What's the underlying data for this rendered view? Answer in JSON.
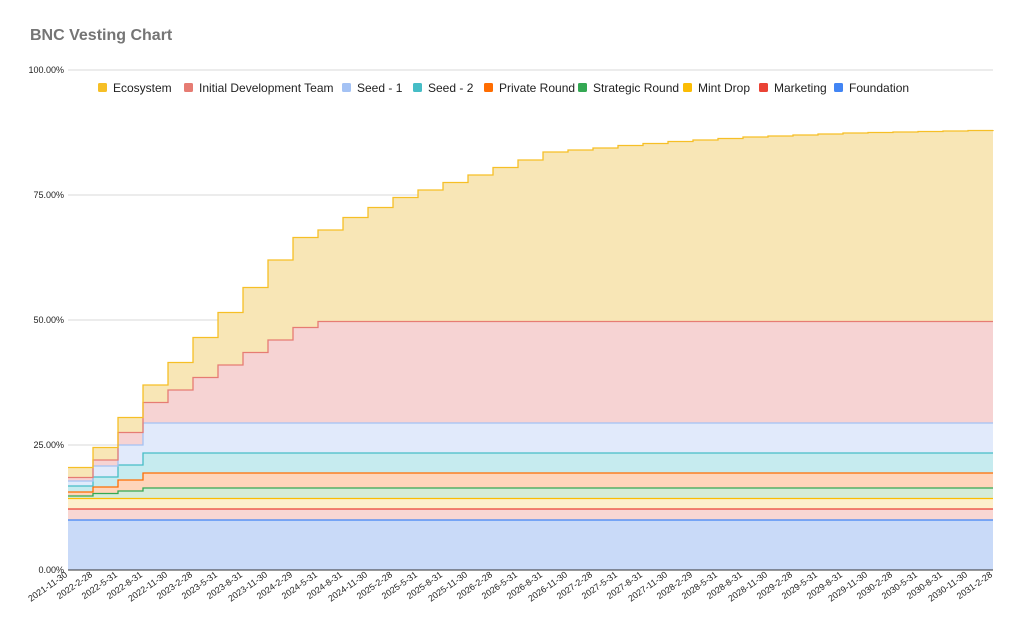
{
  "chart_data": {
    "type": "area",
    "stacked": true,
    "step": true,
    "title": "BNC Vesting Chart",
    "xlabel": "",
    "ylabel": "",
    "ylim": [
      0,
      100
    ],
    "y_ticks": [
      "0.00%",
      "25.00%",
      "50.00%",
      "75.00%",
      "100.00%"
    ],
    "grid": true,
    "legend_position": "top",
    "x_tick_labels": [
      "2021-11-30",
      "2022-2-28",
      "2022-5-31",
      "2022-8-31",
      "2022-11-30",
      "2023-2-28",
      "2023-5-31",
      "2023-8-31",
      "2023-11-30",
      "2024-2-29",
      "2024-5-31",
      "2024-8-31",
      "2024-11-30",
      "2025-2-28",
      "2025-5-31",
      "2025-8-31",
      "2025-11-30",
      "2026-2-28",
      "2026-5-31",
      "2026-8-31",
      "2026-11-30",
      "2027-2-28",
      "2027-5-31",
      "2027-8-31",
      "2027-11-30",
      "2028-2-29",
      "2028-5-31",
      "2028-8-31",
      "2028-11-30",
      "2029-2-28",
      "2029-5-31",
      "2029-8-31",
      "2029-11-30",
      "2030-2-28",
      "2030-5-31",
      "2030-8-31",
      "2030-11-30",
      "2031-2-28"
    ],
    "series": [
      {
        "name": "Foundation",
        "color": "#4285F4",
        "fill": "#c9daf8",
        "x": [
          "2021-11-30",
          "2031-2-28"
        ],
        "y": [
          10,
          10
        ]
      },
      {
        "name": "Marketing",
        "color": "#EA4335",
        "fill": "#f9d7d3",
        "x": [
          "2021-11-30",
          "2031-2-28"
        ],
        "y": [
          12.2,
          12.2
        ]
      },
      {
        "name": "Mint Drop",
        "color": "#FBBC04",
        "fill": "#fdf0cc",
        "x": [
          "2021-11-30",
          "2031-2-28"
        ],
        "y": [
          14.3,
          14.3
        ]
      },
      {
        "name": "Strategic Round",
        "color": "#34A853",
        "fill": "#d5ecd9",
        "x": [
          "2021-11-30",
          "2022-2-28",
          "2022-5-31",
          "2022-8-31",
          "2031-2-28"
        ],
        "y": [
          14.8,
          15.3,
          15.8,
          16.4,
          16.4
        ]
      },
      {
        "name": "Private Round",
        "color": "#FF6D01",
        "fill": "#fed5bb",
        "x": [
          "2021-11-30",
          "2022-2-28",
          "2022-5-31",
          "2022-8-31",
          "2031-2-28"
        ],
        "y": [
          15.6,
          16.6,
          18.0,
          19.4,
          19.4
        ]
      },
      {
        "name": "Seed - 2",
        "color": "#46BDC6",
        "fill": "#c6ebef",
        "x": [
          "2021-11-30",
          "2022-2-28",
          "2022-5-31",
          "2022-8-31",
          "2031-2-28"
        ],
        "y": [
          16.8,
          18.6,
          21.0,
          23.4,
          23.4
        ]
      },
      {
        "name": "Seed - 1",
        "color": "#A4C2F4",
        "fill": "#e1eafb",
        "x": [
          "2021-11-30",
          "2022-2-28",
          "2022-5-31",
          "2022-8-31",
          "2031-2-28"
        ],
        "y": [
          17.8,
          20.8,
          25.0,
          29.4,
          29.4
        ]
      },
      {
        "name": "Initial Development Team",
        "color": "#E67C73",
        "fill": "#f6d3d3",
        "x": [
          "2021-11-30",
          "2022-2-28",
          "2022-5-31",
          "2022-8-31",
          "2022-11-30",
          "2023-2-28",
          "2023-5-31",
          "2023-8-31",
          "2023-11-30",
          "2024-2-29",
          "2024-5-31",
          "2031-2-28"
        ],
        "y": [
          18.5,
          22.0,
          27.5,
          33.5,
          36.0,
          38.5,
          41.0,
          43.5,
          46.0,
          48.5,
          49.7,
          49.7
        ]
      },
      {
        "name": "Ecosystem",
        "color": "#F6BF26",
        "fill": "#f8e6b6",
        "x": [
          "2021-11-30",
          "2022-2-28",
          "2022-5-31",
          "2022-8-31",
          "2022-11-30",
          "2023-2-28",
          "2023-5-31",
          "2023-8-31",
          "2023-11-30",
          "2024-2-29",
          "2024-5-31",
          "2024-8-31",
          "2024-11-30",
          "2025-2-28",
          "2025-5-31",
          "2025-8-31",
          "2025-11-30",
          "2026-2-28",
          "2026-5-31",
          "2026-8-31",
          "2026-11-30",
          "2027-2-28",
          "2027-5-31",
          "2027-8-31",
          "2027-11-30",
          "2028-2-29",
          "2028-5-31",
          "2028-8-31",
          "2028-11-30",
          "2029-2-28",
          "2029-5-31",
          "2029-8-31",
          "2029-11-30",
          "2030-2-28",
          "2030-5-31",
          "2030-8-31",
          "2030-11-30",
          "2031-2-28"
        ],
        "y": [
          20.5,
          24.5,
          30.5,
          37.0,
          41.5,
          46.5,
          51.5,
          56.5,
          62.0,
          66.5,
          68.0,
          70.5,
          72.5,
          74.5,
          76.0,
          77.5,
          79.0,
          80.5,
          82.0,
          83.6,
          84.0,
          84.4,
          84.9,
          85.3,
          85.7,
          86.0,
          86.3,
          86.6,
          86.8,
          87.0,
          87.2,
          87.4,
          87.5,
          87.6,
          87.7,
          87.8,
          87.9,
          88.0
        ]
      }
    ],
    "legend_order": [
      "Ecosystem",
      "Initial Development Team",
      "Seed - 1",
      "Seed - 2",
      "Private Round",
      "Strategic Round",
      "Mint Drop",
      "Marketing",
      "Foundation"
    ]
  }
}
